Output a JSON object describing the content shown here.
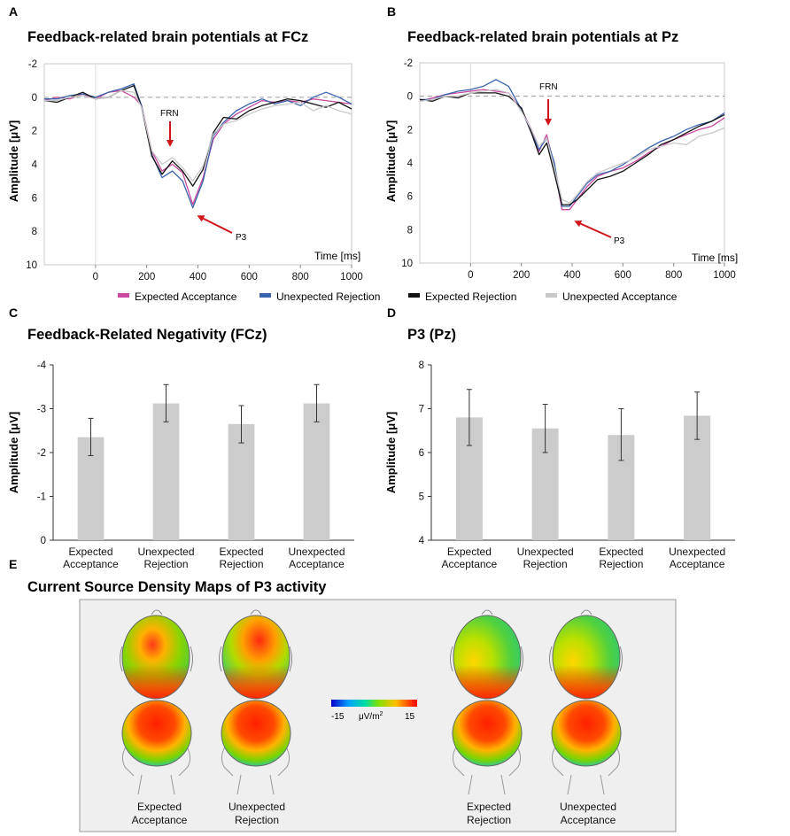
{
  "panels": {
    "a": {
      "letter": "A",
      "title": "Feedback-related brain potentials at FCz"
    },
    "b": {
      "letter": "B",
      "title": "Feedback-related brain potentials at Pz"
    },
    "c": {
      "letter": "C",
      "title": "Feedback-Related Negativity (FCz)"
    },
    "d": {
      "letter": "D",
      "title": "P3 (Pz)"
    },
    "e": {
      "letter": "E",
      "title": "Current Source Density Maps of P3 activity"
    }
  },
  "erp_axis": {
    "ylabel": "Amplitude [μV]",
    "xlabel": "Time [ms]"
  },
  "annotations": {
    "frn": "FRN",
    "p3": "P3"
  },
  "legend": [
    {
      "label": "Expected Acceptance",
      "color": "#c94a9e"
    },
    {
      "label": "Unexpected Rejection",
      "color": "#3a63ad"
    },
    {
      "label": "Expected Rejection",
      "color": "#111111"
    },
    {
      "label": "Unexpected Acceptance",
      "color": "#c8c8c8"
    }
  ],
  "colors": {
    "bar": "#cccccc",
    "frn_arrow": "#d0161b"
  },
  "csd": {
    "scale_min": "-15",
    "scale_unit": "μV/m",
    "scale_unit_sup": "2",
    "scale_max": "15",
    "labels": [
      {
        "line1": "Expected",
        "line2": "Acceptance"
      },
      {
        "line1": "Unexpected",
        "line2": "Rejection"
      },
      {
        "line1": "Expected",
        "line2": "Rejection"
      },
      {
        "line1": "Unexpected",
        "line2": "Acceptance"
      }
    ]
  },
  "chart_data": [
    {
      "id": "A",
      "type": "line",
      "title": "Feedback-related brain potentials at FCz",
      "xlabel": "Time [ms]",
      "ylabel": "Amplitude [μV]",
      "xlim": [
        -200,
        1000
      ],
      "ylim": [
        -2,
        10
      ],
      "y_inverted": true,
      "xticks": [
        0,
        200,
        400,
        600,
        800,
        1000
      ],
      "yticks": [
        -2,
        0,
        2,
        4,
        6,
        8,
        10
      ],
      "x": [
        -200,
        -150,
        -100,
        -50,
        0,
        50,
        100,
        150,
        180,
        220,
        260,
        300,
        340,
        380,
        420,
        460,
        500,
        550,
        600,
        650,
        700,
        750,
        800,
        850,
        900,
        950,
        1000
      ],
      "series": [
        {
          "name": "Expected Acceptance",
          "color": "#c94a9e",
          "values": [
            0.2,
            0.0,
            0.1,
            -0.2,
            0.1,
            -0.3,
            -0.4,
            0.0,
            0.5,
            3.2,
            4.4,
            4.0,
            4.5,
            6.4,
            4.8,
            2.5,
            1.6,
            1.0,
            0.6,
            0.2,
            0.3,
            0.2,
            0.3,
            0.1,
            0.2,
            0.3,
            0.4
          ]
        },
        {
          "name": "Unexpected Rejection",
          "color": "#3a63ad",
          "values": [
            0.1,
            0.1,
            -0.1,
            -0.2,
            0.0,
            -0.3,
            -0.5,
            -0.8,
            0.5,
            3.4,
            4.8,
            4.4,
            5.0,
            6.6,
            5.0,
            2.3,
            1.5,
            0.8,
            0.4,
            0.1,
            0.4,
            0.2,
            0.5,
            0.0,
            -0.3,
            0.0,
            0.4
          ]
        },
        {
          "name": "Expected Rejection",
          "color": "#111111",
          "values": [
            0.2,
            0.3,
            0.0,
            -0.3,
            0.1,
            0.0,
            -0.4,
            -0.7,
            0.6,
            3.5,
            4.6,
            3.8,
            4.4,
            5.3,
            4.3,
            2.1,
            1.2,
            1.3,
            0.8,
            0.5,
            0.3,
            0.1,
            0.2,
            0.4,
            0.6,
            0.3,
            0.7
          ]
        },
        {
          "name": "Unexpected Acceptance",
          "color": "#c8c8c8",
          "values": [
            0.2,
            0.2,
            0.0,
            -0.1,
            0.1,
            0.0,
            -0.4,
            -0.3,
            0.6,
            3.2,
            4.0,
            3.6,
            4.2,
            5.0,
            4.1,
            2.2,
            1.6,
            1.4,
            1.0,
            0.7,
            0.5,
            0.4,
            0.3,
            0.8,
            0.5,
            0.8,
            1.0
          ]
        }
      ]
    },
    {
      "id": "B",
      "type": "line",
      "title": "Feedback-related brain potentials at Pz",
      "xlabel": "Time [ms]",
      "ylabel": "Amplitude [μV]",
      "xlim": [
        -200,
        1000
      ],
      "ylim": [
        -2,
        10
      ],
      "y_inverted": true,
      "xticks": [
        0,
        200,
        400,
        600,
        800,
        1000
      ],
      "yticks": [
        -2,
        0,
        2,
        4,
        6,
        8,
        10
      ],
      "x": [
        -200,
        -150,
        -100,
        -50,
        0,
        50,
        100,
        150,
        200,
        240,
        270,
        300,
        330,
        360,
        390,
        420,
        460,
        500,
        550,
        600,
        650,
        700,
        750,
        800,
        850,
        900,
        950,
        1000
      ],
      "series": [
        {
          "name": "Expected Acceptance",
          "color": "#c94a9e",
          "values": [
            0.3,
            0.1,
            -0.1,
            -0.2,
            -0.3,
            -0.4,
            -0.3,
            -0.2,
            0.8,
            2.0,
            3.3,
            2.3,
            4.2,
            6.8,
            6.8,
            6.2,
            5.4,
            4.8,
            4.5,
            4.3,
            3.9,
            3.4,
            3.0,
            2.6,
            2.3,
            2.0,
            1.8,
            1.3
          ]
        },
        {
          "name": "Unexpected Rejection",
          "color": "#3a63ad",
          "values": [
            0.2,
            0.2,
            -0.1,
            -0.3,
            -0.4,
            -0.6,
            -1.0,
            -0.6,
            0.8,
            2.2,
            3.2,
            2.5,
            4.0,
            6.6,
            6.6,
            6.0,
            5.2,
            4.7,
            4.5,
            4.1,
            3.6,
            3.1,
            2.7,
            2.4,
            2.0,
            1.7,
            1.5,
            1.0
          ]
        },
        {
          "name": "Expected Rejection",
          "color": "#111111",
          "values": [
            0.2,
            0.3,
            0.0,
            0.1,
            -0.2,
            -0.2,
            -0.2,
            0.0,
            0.7,
            2.2,
            3.5,
            2.8,
            4.6,
            6.5,
            6.5,
            6.2,
            5.6,
            5.0,
            4.8,
            4.5,
            4.0,
            3.5,
            2.9,
            2.6,
            2.2,
            1.8,
            1.5,
            1.1
          ]
        },
        {
          "name": "Unexpected Acceptance",
          "color": "#c8c8c8",
          "values": [
            0.3,
            0.2,
            0.0,
            0.0,
            -0.2,
            -0.3,
            -0.4,
            -0.2,
            0.9,
            2.0,
            3.0,
            2.5,
            4.3,
            6.2,
            6.4,
            5.9,
            5.1,
            4.6,
            4.3,
            4.0,
            3.7,
            3.2,
            3.0,
            2.8,
            2.9,
            2.4,
            2.2,
            1.9
          ]
        }
      ]
    },
    {
      "id": "C",
      "type": "bar",
      "title": "Feedback-Related Negativity (FCz)",
      "ylabel": "Amplitude [μV]",
      "categories": [
        [
          "Expected",
          "Acceptance"
        ],
        [
          "Unexpected",
          "Rejection"
        ],
        [
          "Expected",
          "Rejection"
        ],
        [
          "Unexpected",
          "Acceptance"
        ]
      ],
      "values": [
        -2.35,
        -3.12,
        -2.65,
        -3.12
      ],
      "errors": [
        [
          -1.93,
          -2.78
        ],
        [
          -2.7,
          -3.55
        ],
        [
          -2.22,
          -3.07
        ],
        [
          -2.7,
          -3.55
        ]
      ],
      "ylim": [
        0,
        -4
      ],
      "yticks": [
        0,
        -1,
        -2,
        -3,
        -4
      ],
      "ytick_labels": [
        "0",
        "-1",
        "-2",
        "-3",
        "-4"
      ]
    },
    {
      "id": "D",
      "type": "bar",
      "title": "P3 (Pz)",
      "ylabel": "Amplitude [μV]",
      "categories": [
        [
          "Expected",
          "Acceptance"
        ],
        [
          "Unexpected",
          "Rejection"
        ],
        [
          "Expected",
          "Rejection"
        ],
        [
          "Unexpected",
          "Acceptance"
        ]
      ],
      "values": [
        6.8,
        6.55,
        6.4,
        6.84
      ],
      "errors": [
        [
          6.16,
          7.44
        ],
        [
          6.0,
          7.1
        ],
        [
          5.82,
          7.0
        ],
        [
          6.3,
          7.38
        ]
      ],
      "ylim": [
        4,
        8
      ],
      "yticks": [
        4,
        5,
        6,
        7,
        8
      ],
      "ytick_labels": [
        "4",
        "5",
        "6",
        "7",
        "8"
      ]
    }
  ]
}
